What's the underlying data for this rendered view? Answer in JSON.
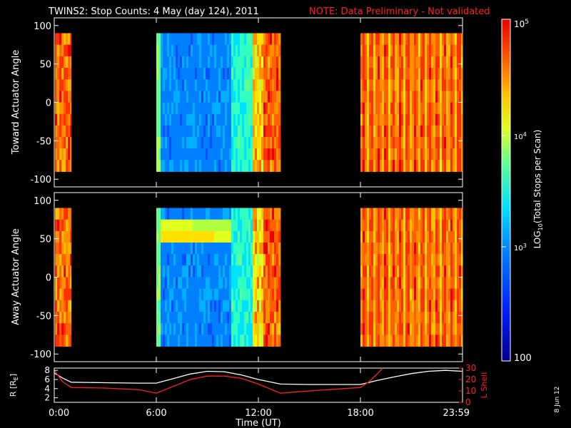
{
  "header": {
    "title": "TWINS2: Stop Counts:  4 May (day 124), 2011",
    "note": "NOTE: Data Preliminary - Not validated",
    "note_color": "#ff2020"
  },
  "stamp": "8 Jun 12",
  "chart_data": [
    {
      "type": "heatmap",
      "name": "toward",
      "ylabel": "Toward Actuator Angle",
      "ylim": [
        -110,
        110
      ],
      "yticks": [
        "100",
        "50",
        "0",
        "-50",
        "-100"
      ],
      "ytick_values": [
        100,
        50,
        0,
        -50,
        -100
      ],
      "angle_range": [
        -90,
        90
      ],
      "data_blocks": [
        {
          "start_h": 0.05,
          "end_h": 1.0,
          "level": "high"
        },
        {
          "start_h": 6.0,
          "end_h": 13.3,
          "level": "mixed"
        },
        {
          "start_h": 18.0,
          "end_h": 24.0,
          "level": "mid-high"
        }
      ]
    },
    {
      "type": "heatmap",
      "name": "away",
      "ylabel": "Away Actuator Angle",
      "ylim": [
        -110,
        110
      ],
      "yticks": [
        "100",
        "50",
        "0",
        "-50",
        "-100"
      ],
      "ytick_values": [
        100,
        50,
        0,
        -50,
        -100
      ],
      "angle_range": [
        -90,
        90
      ],
      "data_blocks": [
        {
          "start_h": 0.05,
          "end_h": 1.0,
          "level": "high"
        },
        {
          "start_h": 6.0,
          "end_h": 13.3,
          "level": "mixed"
        },
        {
          "start_h": 18.0,
          "end_h": 24.0,
          "level": "mid-high"
        }
      ]
    },
    {
      "type": "line",
      "name": "orbit",
      "ylabel_left": "R [R",
      "ylabel_left_sub": "E",
      "ylabel_left_end": "]",
      "ylabel_right": "L Shell",
      "yticks_left": [
        "8",
        "6",
        "4",
        "2"
      ],
      "ytick_values_left": [
        8,
        6,
        4,
        2
      ],
      "ylim_left": [
        1,
        8.5
      ],
      "yticks_right": [
        "30",
        "20",
        "10",
        "0"
      ],
      "ytick_values_right": [
        30,
        20,
        10,
        0
      ],
      "ylim_right": [
        0,
        30
      ],
      "series": [
        {
          "name": "R",
          "color": "#ffffff",
          "x": [
            0,
            0.5,
            1.0,
            3,
            5,
            6.0,
            7,
            8,
            9,
            10,
            11,
            12,
            13.3,
            15,
            17,
            18,
            19,
            20,
            21,
            22,
            23,
            24
          ],
          "y": [
            7.4,
            6.3,
            5.4,
            5.3,
            5.2,
            5.2,
            6.2,
            7.2,
            7.8,
            7.7,
            7.0,
            6.0,
            5.0,
            4.9,
            4.9,
            4.9,
            5.8,
            6.6,
            7.3,
            7.8,
            8.0,
            7.8
          ]
        },
        {
          "name": "L Shell",
          "color": "#ff2020",
          "x": [
            0,
            0.5,
            1.0,
            3,
            5,
            6.0,
            7,
            8,
            9,
            10,
            11,
            12,
            13.3,
            15,
            17,
            18,
            18.5,
            19,
            19.3
          ],
          "y": [
            28,
            18,
            13,
            12.5,
            11,
            8,
            14,
            20,
            23,
            23,
            21,
            16,
            8,
            10,
            12,
            13,
            18,
            25,
            30
          ]
        }
      ]
    }
  ],
  "x_axis": {
    "ticks": [
      "0:00",
      "6:00",
      "12:00",
      "18:00",
      "23:59"
    ],
    "tick_values": [
      0,
      6,
      12,
      18,
      24
    ],
    "label": "Time (UT)"
  },
  "colorbar": {
    "label_pre": "LOG",
    "label_sub": "10",
    "label_post": "(Total Stops per Scan)",
    "tick_top_base": "10",
    "tick_top_exp": "5",
    "tick_mid_base": "10",
    "tick_mid_exp": "4",
    "tick_low_base": "10",
    "tick_low_exp": "3",
    "tick_bottom": "100",
    "scale": "log",
    "range": [
      100,
      100000
    ]
  }
}
